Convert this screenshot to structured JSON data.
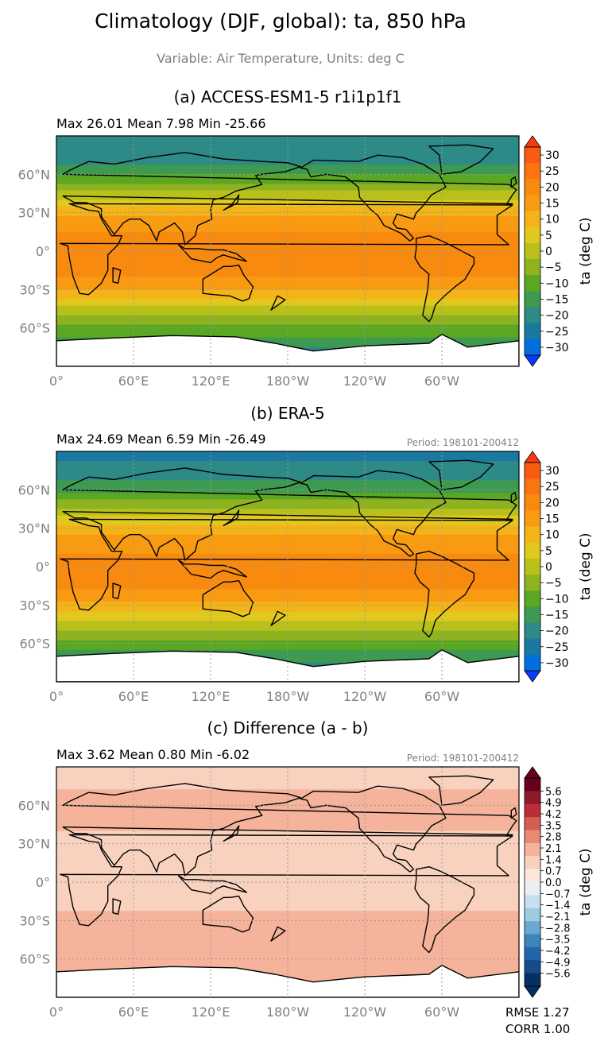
{
  "figure": {
    "title": "Climatology (DJF, global): ta, 850 hPa",
    "subtitle": "Variable: Air Temperature, Units: deg C"
  },
  "panels": [
    {
      "title": "(a) ACCESS-ESM1-5 r1i1p1f1",
      "stats": "Max 26.01 Mean 7.98 Min -25.66",
      "period": "",
      "colorbar_label": "ta (deg C)",
      "colorbar_ticks": [
        "30",
        "25",
        "20",
        "15",
        "10",
        "5",
        "0",
        "−5",
        "−10",
        "−15",
        "−20",
        "−25",
        "−30"
      ]
    },
    {
      "title": "(b) ERA-5",
      "stats": "Max 24.69 Mean 6.59 Min -26.49",
      "period": "Period: 198101-200412",
      "colorbar_label": "ta (deg C)",
      "colorbar_ticks": [
        "30",
        "25",
        "20",
        "15",
        "10",
        "5",
        "0",
        "−5",
        "−10",
        "−15",
        "−20",
        "−25",
        "−30"
      ]
    },
    {
      "title": "(c) Difference (a - b)",
      "stats": "Max 3.62 Mean 0.80 Min -6.02",
      "period": "Period: 198101-200412",
      "colorbar_label": "ta (deg C)",
      "colorbar_ticks": [
        "5.6",
        "4.9",
        "4.2",
        "3.5",
        "2.8",
        "2.1",
        "1.4",
        "0.7",
        "0.0",
        "−0.7",
        "−1.4",
        "−2.1",
        "−2.8",
        "−3.5",
        "−4.2",
        "−4.9",
        "−5.6"
      ],
      "rmse": "RMSE 1.27",
      "corr": "CORR 1.00"
    }
  ],
  "axes": {
    "x_ticks": [
      "0°",
      "60°E",
      "120°E",
      "180°W",
      "120°W",
      "60°W"
    ],
    "y_ticks": [
      "60°N",
      "30°N",
      "0°",
      "30°S",
      "60°S"
    ]
  },
  "colors": {
    "temp_levels": [
      "#0a3aff",
      "#0070e0",
      "#1b78a0",
      "#2d8a86",
      "#3d9a50",
      "#5aa822",
      "#8fb320",
      "#b9c01c",
      "#e0c81e",
      "#f4b418",
      "#f89a12",
      "#f88a10",
      "#fa7410",
      "#fb5a12",
      "#fd3a0f"
    ],
    "diff_levels": [
      "#053061",
      "#134c87",
      "#2166ac",
      "#3a87bd",
      "#6aa9d0",
      "#9dcbe2",
      "#c6e0ee",
      "#e6f0f5",
      "#fbe8dd",
      "#f9d2bf",
      "#f4b39a",
      "#e68a72",
      "#d25f51",
      "#bb2e35",
      "#8f1a29",
      "#67001f"
    ],
    "land_outline": "#000000",
    "missing": "#ffffff"
  },
  "chart_data": [
    {
      "type": "heatmap",
      "title": "(a) ACCESS-ESM1-5 r1i1p1f1",
      "x_range": [
        0,
        360
      ],
      "y_range": [
        -90,
        90
      ],
      "x_ticks": [
        0,
        60,
        120,
        180,
        240,
        300
      ],
      "y_ticks": [
        60,
        30,
        0,
        -30,
        -60
      ],
      "color_levels": [
        -30,
        -25,
        -20,
        -15,
        -10,
        -5,
        0,
        5,
        10,
        15,
        20,
        25,
        30
      ],
      "colorbar_extend": "both",
      "zonal_mean_profile": {
        "lat": [
          -90,
          -75,
          -60,
          -45,
          -30,
          -15,
          0,
          15,
          30,
          45,
          60,
          75,
          90
        ],
        "ta": [
          -22,
          -20,
          -11,
          -1,
          10,
          17,
          19,
          15,
          9,
          -3,
          -15,
          -24,
          -25
        ]
      },
      "max": 26.01,
      "mean": 7.98,
      "min": -25.66
    },
    {
      "type": "heatmap",
      "title": "(b) ERA-5",
      "x_range": [
        0,
        360
      ],
      "y_range": [
        -90,
        90
      ],
      "x_ticks": [
        0,
        60,
        120,
        180,
        240,
        300
      ],
      "y_ticks": [
        60,
        30,
        0,
        -30,
        -60
      ],
      "color_levels": [
        -30,
        -25,
        -20,
        -15,
        -10,
        -5,
        0,
        5,
        10,
        15,
        20,
        25,
        30
      ],
      "colorbar_extend": "both",
      "zonal_mean_profile": {
        "lat": [
          -90,
          -75,
          -60,
          -45,
          -30,
          -15,
          0,
          15,
          30,
          45,
          60,
          75,
          90
        ],
        "ta": [
          -24,
          -20,
          -12,
          -2,
          9,
          16,
          18,
          14,
          8,
          -4,
          -16,
          -24,
          -26
        ]
      },
      "max": 24.69,
      "mean": 6.59,
      "min": -26.49
    },
    {
      "type": "heatmap",
      "title": "(c) Difference (a - b)",
      "x_range": [
        0,
        360
      ],
      "y_range": [
        -90,
        90
      ],
      "x_ticks": [
        0,
        60,
        120,
        180,
        240,
        300
      ],
      "y_ticks": [
        60,
        30,
        0,
        -30,
        -60
      ],
      "color_levels": [
        -5.6,
        -4.9,
        -4.2,
        -3.5,
        -2.8,
        -2.1,
        -1.4,
        -0.7,
        0.0,
        0.7,
        1.4,
        2.1,
        2.8,
        3.5,
        4.2,
        4.9,
        5.6
      ],
      "colorbar_extend": "both",
      "zonal_mean_profile": {
        "lat": [
          -90,
          -75,
          -60,
          -45,
          -30,
          -15,
          0,
          15,
          30,
          45,
          60,
          75,
          90
        ],
        "ta": [
          1.2,
          0.9,
          1.0,
          1.3,
          0.8,
          0.6,
          0.5,
          0.6,
          0.4,
          0.8,
          1.1,
          0.6,
          0.3
        ]
      },
      "max": 3.62,
      "mean": 0.8,
      "min": -6.02,
      "rmse": 1.27,
      "corr": 1.0
    }
  ]
}
